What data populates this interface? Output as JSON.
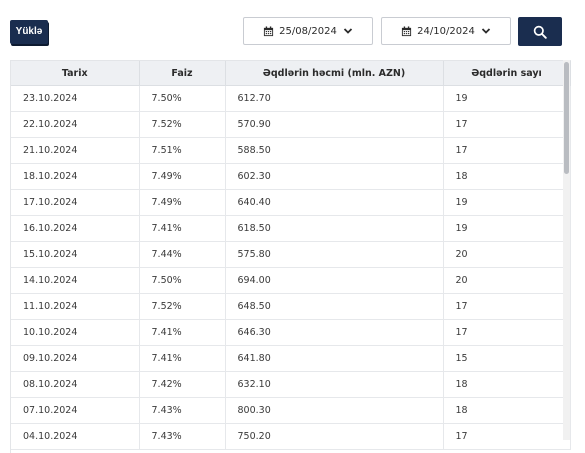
{
  "toolbar": {
    "download_label": "Yüklə",
    "date_from": "25/08/2024",
    "date_to": "24/10/2024",
    "calendar_icon": "calendar-icon",
    "chevron_icon": "chevron-down-icon",
    "search_icon": "search-icon"
  },
  "table": {
    "headers": [
      "Tarix",
      "Faiz",
      "Əqdlərin həcmi (mln. AZN)",
      "Əqdlərin sayı"
    ],
    "rows": [
      [
        "23.10.2024",
        "7.50%",
        "612.70",
        "19"
      ],
      [
        "22.10.2024",
        "7.52%",
        "570.90",
        "17"
      ],
      [
        "21.10.2024",
        "7.51%",
        "588.50",
        "17"
      ],
      [
        "18.10.2024",
        "7.49%",
        "602.30",
        "18"
      ],
      [
        "17.10.2024",
        "7.49%",
        "640.40",
        "19"
      ],
      [
        "16.10.2024",
        "7.41%",
        "618.50",
        "19"
      ],
      [
        "15.10.2024",
        "7.44%",
        "575.80",
        "20"
      ],
      [
        "14.10.2024",
        "7.50%",
        "694.00",
        "20"
      ],
      [
        "11.10.2024",
        "7.52%",
        "648.50",
        "17"
      ],
      [
        "10.10.2024",
        "7.41%",
        "646.30",
        "17"
      ],
      [
        "09.10.2024",
        "7.41%",
        "641.80",
        "15"
      ],
      [
        "08.10.2024",
        "7.42%",
        "632.10",
        "18"
      ],
      [
        "07.10.2024",
        "7.43%",
        "800.30",
        "18"
      ],
      [
        "04.10.2024",
        "7.43%",
        "750.20",
        "17"
      ]
    ]
  },
  "colors": {
    "primary": "#1a2d4f",
    "header_bg": "#eef0f3",
    "border": "#e6e8eb"
  }
}
